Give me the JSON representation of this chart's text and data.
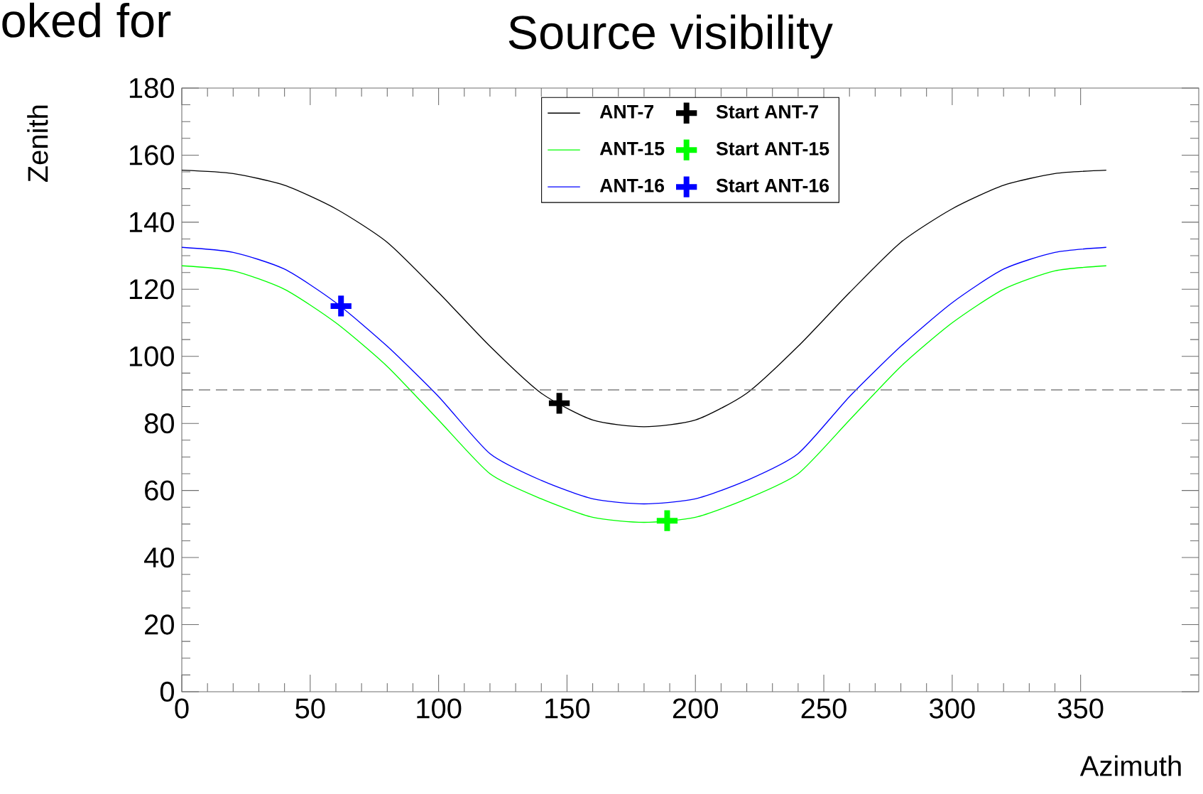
{
  "chart_data": {
    "type": "line",
    "title": "Source visibility",
    "xlabel": "Azimuth",
    "ylabel": "Zenith",
    "annotations": [
      "oked for"
    ],
    "xlim": [
      0,
      396
    ],
    "ylim": [
      0,
      180
    ],
    "xticks": [
      0,
      50,
      100,
      150,
      200,
      250,
      300,
      350
    ],
    "yticks": [
      0,
      20,
      40,
      60,
      80,
      100,
      120,
      140,
      160,
      180
    ],
    "legend": "top",
    "marker": "none",
    "line_style": "solid",
    "ref_lines": [
      {
        "axis": "y",
        "value": 90,
        "color": "#808080",
        "line_style": "dashed"
      }
    ],
    "series": [
      {
        "name": "ANT-7",
        "color": "#000000",
        "x": [
          0,
          20,
          40,
          60,
          80,
          100,
          120,
          140,
          160,
          180,
          200,
          220,
          240,
          260,
          280,
          300,
          320,
          340,
          360
        ],
        "values": [
          155.5,
          154.5,
          151,
          144,
          134,
          119,
          103,
          89,
          81,
          79,
          81,
          89,
          103,
          119,
          134,
          144,
          151,
          154.5,
          155.5
        ]
      },
      {
        "name": "ANT-15",
        "color": "#00ff00",
        "x": [
          0,
          20,
          40,
          60,
          80,
          100,
          120,
          140,
          160,
          180,
          200,
          220,
          240,
          260,
          280,
          300,
          320,
          340,
          360
        ],
        "values": [
          127,
          125.5,
          120,
          110,
          97,
          81,
          65,
          57.5,
          52,
          50.5,
          52,
          57.5,
          65,
          81,
          97,
          110,
          120,
          125.5,
          127
        ]
      },
      {
        "name": "ANT-16",
        "color": "#0000ff",
        "x": [
          0,
          20,
          40,
          60,
          80,
          100,
          120,
          140,
          160,
          180,
          200,
          220,
          240,
          260,
          280,
          300,
          320,
          340,
          360
        ],
        "values": [
          132.5,
          131,
          126,
          116,
          103,
          88,
          71,
          63,
          57.5,
          56,
          57.5,
          63,
          71,
          88,
          103,
          116,
          126,
          131,
          132.5
        ]
      },
      {
        "name": "Start ANT-7",
        "type": "scatter",
        "marker": "cross",
        "color": "#000000",
        "x": [
          147
        ],
        "values": [
          86
        ]
      },
      {
        "name": "Start ANT-15",
        "type": "scatter",
        "marker": "cross",
        "color": "#00ff00",
        "x": [
          189
        ],
        "values": [
          51
        ]
      },
      {
        "name": "Start ANT-16",
        "type": "scatter",
        "marker": "cross",
        "color": "#0000ff",
        "x": [
          62
        ],
        "values": [
          115
        ]
      }
    ]
  }
}
